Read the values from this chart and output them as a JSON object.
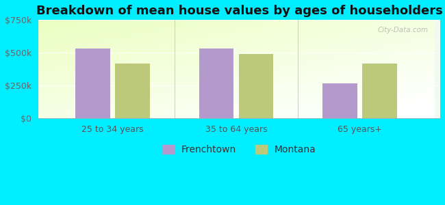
{
  "title": "Breakdown of mean house values by ages of householders",
  "categories": [
    "25 to 34 years",
    "35 to 64 years",
    "65 years+"
  ],
  "frenchtown_values": [
    530000,
    530000,
    265000
  ],
  "montana_values": [
    415000,
    490000,
    415000
  ],
  "ylim": [
    0,
    750000
  ],
  "yticks": [
    0,
    250000,
    500000,
    750000
  ],
  "ytick_labels": [
    "$0",
    "$250k",
    "$500k",
    "$750k"
  ],
  "frenchtown_color": "#b399cc",
  "montana_color": "#bcc87a",
  "background_color": "#00eeff",
  "plot_bg_gradient_top": "#e8f5e0",
  "plot_bg_gradient_bottom": "#f8fff8",
  "bar_width": 0.28,
  "legend_labels": [
    "Frenchtown",
    "Montana"
  ],
  "title_fontsize": 13,
  "tick_fontsize": 9,
  "legend_fontsize": 10,
  "watermark": "City-Data.com"
}
